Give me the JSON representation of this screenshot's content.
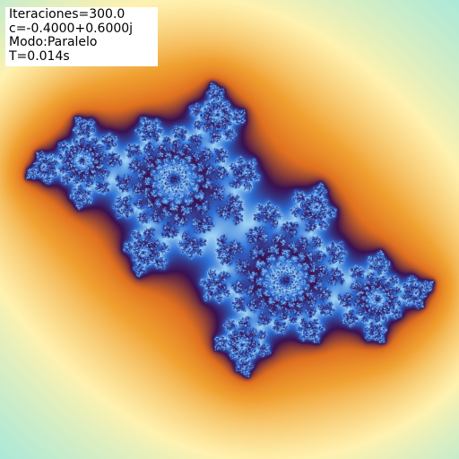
{
  "info": {
    "iterations": "Iteraciones=300.0",
    "constant": "c=-0.4000+0.6000j",
    "mode": "Modo:Paralelo",
    "time": "T=0.014s"
  },
  "fractal": {
    "type": "julia",
    "c_real": -0.4,
    "c_imag": 0.6,
    "max_iterations": 300,
    "palette": {
      "outer": "#8ee6e8",
      "mid": "#fff2b0",
      "warm": "#f0a030",
      "orange": "#e07020",
      "deep": "#3a1050",
      "blue": "#2d6fd6",
      "light_blue": "#a0d4f5",
      "interior": "#1b2a6b"
    }
  }
}
